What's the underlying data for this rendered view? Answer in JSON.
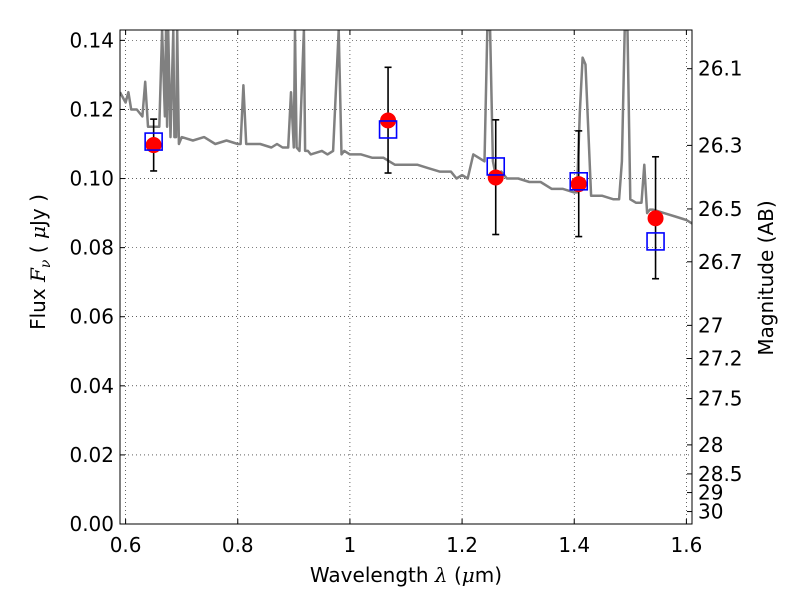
{
  "chart_data": {
    "type": "scatter",
    "xlabel": "Wavelength  λ (μm)",
    "ylabel": "Flux  F_ν  ( μJy )",
    "ylabel_right": "Magnitude (AB)",
    "xlim": [
      0.59,
      1.61
    ],
    "ylim": [
      0.0,
      0.143
    ],
    "grid": true,
    "x_ticks": [
      0.6,
      0.8,
      1.0,
      1.2,
      1.4,
      1.6
    ],
    "x_tick_labels": [
      "0.6",
      "0.8",
      "1",
      "1.2",
      "1.4",
      "1.6"
    ],
    "y_ticks": [
      0.0,
      0.02,
      0.04,
      0.06,
      0.08,
      0.1,
      0.12,
      0.14
    ],
    "y_tick_labels": [
      "0.00",
      "0.02",
      "0.04",
      "0.06",
      "0.08",
      "0.10",
      "0.12",
      "0.14"
    ],
    "right_ticks": [
      {
        "label": "26.1",
        "flux": 0.1318
      },
      {
        "label": "26.3",
        "flux": 0.1096
      },
      {
        "label": "26.5",
        "flux": 0.0912
      },
      {
        "label": "26.7",
        "flux": 0.0759
      },
      {
        "label": "27",
        "flux": 0.0575
      },
      {
        "label": "27.2",
        "flux": 0.0479
      },
      {
        "label": "27.5",
        "flux": 0.0363
      },
      {
        "label": "28",
        "flux": 0.0229
      },
      {
        "label": "28.5",
        "flux": 0.0145
      },
      {
        "label": "29",
        "flux": 0.0091
      },
      {
        "label": "30",
        "flux": 0.0036
      }
    ],
    "series": [
      {
        "role": "model-spectrum",
        "style": "line",
        "color": "#808080",
        "x": [
          0.59,
          0.6,
          0.605,
          0.61,
          0.62,
          0.63,
          0.635,
          0.64,
          0.65,
          0.66,
          0.665,
          0.67,
          0.672,
          0.674,
          0.676,
          0.68,
          0.685,
          0.687,
          0.69,
          0.692,
          0.695,
          0.7,
          0.72,
          0.74,
          0.76,
          0.78,
          0.8,
          0.805,
          0.81,
          0.815,
          0.82,
          0.84,
          0.86,
          0.87,
          0.88,
          0.89,
          0.895,
          0.9,
          0.902,
          0.905,
          0.91,
          0.918,
          0.92,
          0.925,
          0.93,
          0.95,
          0.96,
          0.97,
          0.98,
          0.985,
          0.99,
          1.0,
          1.02,
          1.04,
          1.06,
          1.07,
          1.08,
          1.1,
          1.12,
          1.14,
          1.16,
          1.18,
          1.19,
          1.2,
          1.21,
          1.22,
          1.24,
          1.245,
          1.25,
          1.255,
          1.26,
          1.27,
          1.28,
          1.3,
          1.32,
          1.34,
          1.36,
          1.38,
          1.4,
          1.405,
          1.41,
          1.415,
          1.42,
          1.43,
          1.45,
          1.47,
          1.48,
          1.485,
          1.49,
          1.495,
          1.5,
          1.51,
          1.52,
          1.525,
          1.53,
          1.535,
          1.54,
          1.56,
          1.58,
          1.6,
          1.61
        ],
        "y": [
          0.125,
          0.122,
          0.125,
          0.12,
          0.12,
          0.118,
          0.128,
          0.115,
          0.115,
          0.115,
          0.143,
          0.118,
          0.143,
          0.115,
          0.143,
          0.112,
          0.143,
          0.112,
          0.112,
          0.143,
          0.11,
          0.112,
          0.111,
          0.112,
          0.11,
          0.111,
          0.11,
          0.11,
          0.127,
          0.11,
          0.11,
          0.11,
          0.109,
          0.11,
          0.109,
          0.109,
          0.125,
          0.109,
          0.143,
          0.109,
          0.108,
          0.143,
          0.108,
          0.108,
          0.107,
          0.108,
          0.107,
          0.108,
          0.143,
          0.107,
          0.108,
          0.107,
          0.107,
          0.106,
          0.106,
          0.105,
          0.104,
          0.104,
          0.104,
          0.103,
          0.102,
          0.102,
          0.1,
          0.101,
          0.1,
          0.107,
          0.105,
          0.143,
          0.143,
          0.105,
          0.101,
          0.102,
          0.1,
          0.1,
          0.099,
          0.099,
          0.097,
          0.097,
          0.096,
          0.096,
          0.119,
          0.135,
          0.133,
          0.095,
          0.095,
          0.094,
          0.094,
          0.105,
          0.143,
          0.143,
          0.094,
          0.093,
          0.093,
          0.104,
          0.09,
          0.091,
          0.091,
          0.09,
          0.089,
          0.088,
          0.087
        ]
      },
      {
        "role": "observed",
        "style": "circle",
        "color": "#ff0000",
        "x": [
          0.65,
          1.068,
          1.26,
          1.408,
          1.545
        ],
        "y": [
          0.1097,
          0.1168,
          0.1003,
          0.0984,
          0.0885
        ],
        "err_low": [
          0.1022,
          0.1016,
          0.0838,
          0.0832,
          0.071
        ],
        "err_high": [
          0.1172,
          0.1322,
          0.117,
          0.1138,
          0.1063
        ]
      },
      {
        "role": "model-synthetic",
        "style": "square",
        "color": "#0000ff",
        "x": [
          0.65,
          1.068,
          1.26,
          1.408,
          1.545
        ],
        "y": [
          0.1107,
          0.1142,
          0.1035,
          0.0992,
          0.0818
        ]
      }
    ]
  }
}
